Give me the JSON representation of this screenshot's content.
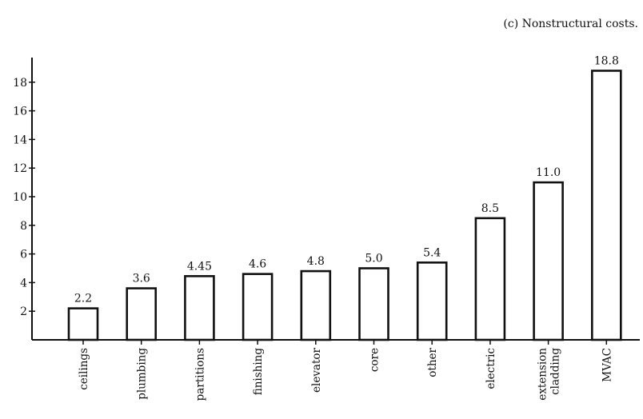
{
  "chart_data": {
    "type": "bar",
    "title": "(c) Nonstructural costs.",
    "xlabel": "",
    "ylabel": "",
    "ylim": [
      0,
      20
    ],
    "yticks": [
      2,
      4,
      6,
      8,
      10,
      12,
      14,
      16,
      18
    ],
    "categories": [
      [
        "ceilings"
      ],
      [
        "plumbing"
      ],
      [
        "partitions"
      ],
      [
        "finishing"
      ],
      [
        "elevator"
      ],
      [
        "core"
      ],
      [
        "other"
      ],
      [
        "electric"
      ],
      [
        "extension",
        "cladding"
      ],
      [
        "MVAC"
      ]
    ],
    "values": [
      2.2,
      3.6,
      4.45,
      4.6,
      4.8,
      5.0,
      5.4,
      8.5,
      11.0,
      18.8
    ],
    "value_labels": [
      "2.2",
      "3.6",
      "4.45",
      "4.6",
      "4.8",
      "5.0",
      "5.4",
      "8.5",
      "11.0",
      "18.8"
    ],
    "grid": false,
    "bar_fill": "#ffffff",
    "bar_stroke": "#111111"
  }
}
